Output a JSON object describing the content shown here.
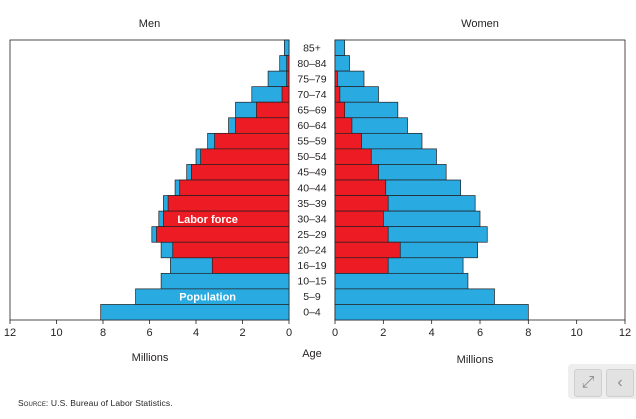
{
  "chart_data": {
    "type": "bar",
    "orientation": "horizontal",
    "layout": "population-pyramid",
    "panels": {
      "left": "Men",
      "right": "Women"
    },
    "categories": [
      "85+",
      "80–84",
      "75–79",
      "70–74",
      "65–69",
      "60–64",
      "55–59",
      "50–54",
      "45–49",
      "40–44",
      "35–39",
      "30–34",
      "25–29",
      "20–24",
      "16–19",
      "10–15",
      "5–9",
      "0–4"
    ],
    "center_label": "Age",
    "series": [
      {
        "name": "Population",
        "color": "#29aae1",
        "men": [
          0.2,
          0.4,
          0.9,
          1.6,
          2.3,
          2.6,
          3.5,
          4.0,
          4.4,
          4.9,
          5.4,
          5.6,
          5.9,
          5.5,
          5.1,
          5.5,
          6.6,
          8.1
        ],
        "women": [
          0.4,
          0.6,
          1.2,
          1.8,
          2.6,
          3.0,
          3.6,
          4.2,
          4.6,
          5.2,
          5.8,
          6.0,
          6.3,
          5.9,
          5.3,
          5.5,
          6.6,
          8.0
        ]
      },
      {
        "name": "Labor force",
        "color": "#ed1c24",
        "men": [
          0.0,
          0.1,
          0.1,
          0.3,
          1.4,
          2.3,
          3.2,
          3.8,
          4.2,
          4.7,
          5.2,
          5.4,
          5.7,
          5.0,
          3.3,
          0.0,
          0.0,
          0.0
        ],
        "women": [
          0.0,
          0.0,
          0.1,
          0.2,
          0.4,
          0.7,
          1.1,
          1.5,
          1.8,
          2.1,
          2.2,
          2.0,
          2.2,
          2.7,
          2.2,
          0.0,
          0.0,
          0.0
        ]
      }
    ],
    "xlim": [
      0,
      12
    ],
    "xticks": [
      0,
      2,
      4,
      6,
      8,
      10,
      12
    ],
    "xlabel_left": "Millions",
    "xlabel_right": "Millions",
    "annotations": [
      {
        "text": "Labor force",
        "panel": "left",
        "category": "30–34",
        "x": 3.5
      },
      {
        "text": "Population",
        "panel": "left",
        "category": "5–9",
        "x": 3.5
      }
    ],
    "grid": false,
    "legend": "none"
  },
  "source": {
    "label": "Source:",
    "text": "U.S. Bureau of Labor Statistics."
  },
  "viewer": {
    "expand_icon": "expand-icon",
    "prev_icon": "chevron-left-icon"
  }
}
